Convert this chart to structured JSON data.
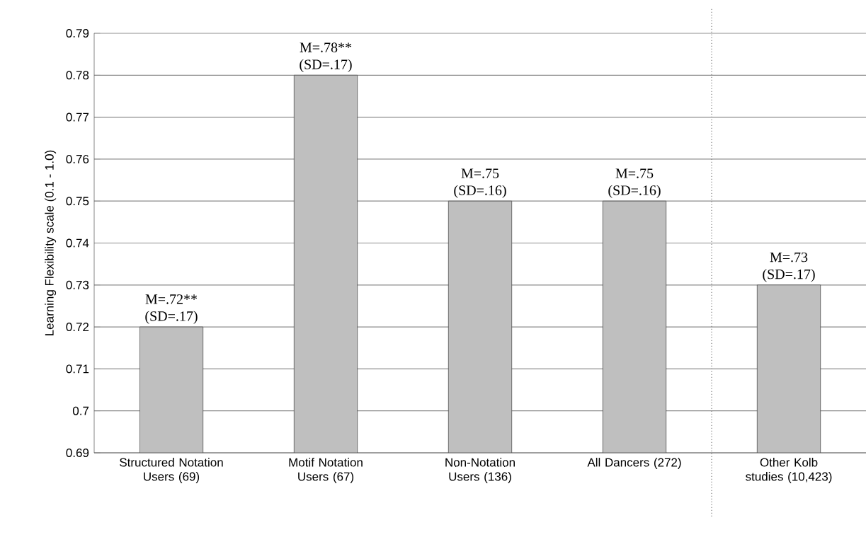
{
  "chart_data": {
    "type": "bar",
    "ylabel": "Learning Flexibility scale (0.1 - 1.0)",
    "categories": [
      "Structured Notation Users (69)",
      "Motif Notation Users (67)",
      "Non-Notation Users (136)",
      "All Dancers (272)",
      "Other Kolb studies (10,423)"
    ],
    "values": [
      0.72,
      0.78,
      0.75,
      0.75,
      0.73
    ],
    "value_labels": [
      "M=.72** (SD=.17)",
      "M=.78** (SD=.17)",
      "M=.75 (SD=.16)",
      "M=.75 (SD=.16)",
      "M=.73 (SD=.17)"
    ],
    "color": "#bfbfbf",
    "ylim": [
      0.69,
      0.79
    ],
    "yticks": [
      0.69,
      0.7,
      0.71,
      0.72,
      0.73,
      0.74,
      0.75,
      0.76,
      0.77,
      0.78,
      0.79
    ],
    "grid": "y"
  }
}
